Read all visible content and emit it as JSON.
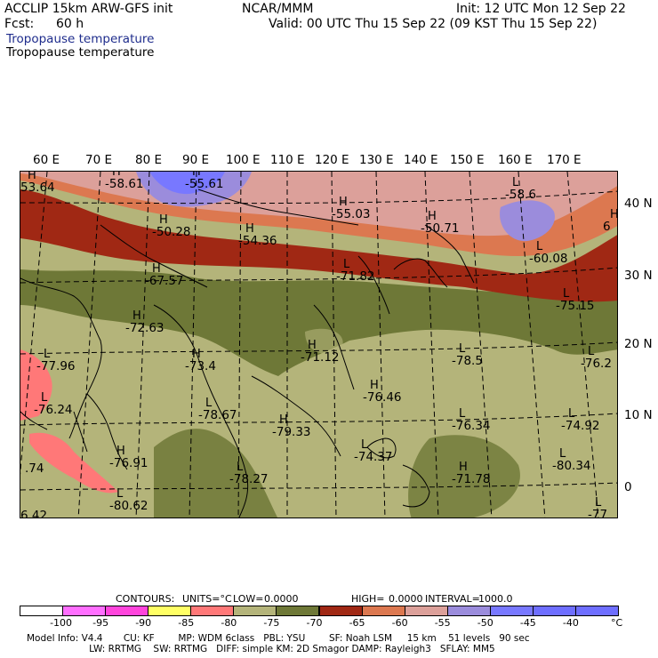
{
  "header": {
    "title": "ACCLIP 15km ARW-GFS init",
    "org": "NCAR/MMM",
    "init": "Init: 12 UTC Mon 12 Sep 22",
    "fcst_label": "Fcst:",
    "fcst_value": "60 h",
    "valid": "Valid: 00 UTC Thu 15 Sep 22 (09 KST Thu 15 Sep 22)",
    "field_title_1": "Tropopause temperature",
    "field_title_2": "Tropopause temperature"
  },
  "map": {
    "lon_labels": [
      "60 E",
      "70 E",
      "80 E",
      "90 E",
      "100 E",
      "110 E",
      "120 E",
      "130 E",
      "140 E",
      "150 E",
      "160 E",
      "170 E"
    ],
    "lat_labels": [
      "40 N",
      "30 N",
      "20 N",
      "10 N",
      "0"
    ],
    "extrema": [
      {
        "kind": "H",
        "value": "-58.61"
      },
      {
        "kind": "H",
        "value": "-55.61"
      },
      {
        "kind": "L",
        "value": "-58.6"
      },
      {
        "kind": "H",
        "value": "-55.03"
      },
      {
        "kind": "H",
        "value": "-50.28"
      },
      {
        "kind": "H",
        "value": "-54.36"
      },
      {
        "kind": "H",
        "value": "-50.71"
      },
      {
        "kind": "L",
        "value": "-60.08"
      },
      {
        "kind": "H",
        "value": "-67.57"
      },
      {
        "kind": "L",
        "value": "-71.82"
      },
      {
        "kind": "L",
        "value": "-75.15"
      },
      {
        "kind": "H",
        "value": "-72.63"
      },
      {
        "kind": "L",
        "value": "-77.96"
      },
      {
        "kind": "H",
        "value": "-73.4"
      },
      {
        "kind": "H",
        "value": "-71.12"
      },
      {
        "kind": "L",
        "value": "-78.5"
      },
      {
        "kind": "L",
        "value": "-76.2"
      },
      {
        "kind": "H",
        "value": "-76.46"
      },
      {
        "kind": "L",
        "value": "-76.24"
      },
      {
        "kind": "L",
        "value": "-78.67"
      },
      {
        "kind": "H",
        "value": "-79.33"
      },
      {
        "kind": "L",
        "value": "-76.34"
      },
      {
        "kind": "L",
        "value": "-74.92"
      },
      {
        "kind": "H",
        "value": "-76.91"
      },
      {
        "kind": "L",
        "value": "-78.27"
      },
      {
        "kind": "L",
        "value": "-74.37"
      },
      {
        "kind": "H",
        "value": "-71.78"
      },
      {
        "kind": "L",
        "value": "-80.34"
      },
      {
        "kind": "L",
        "value": "-80.62"
      },
      {
        "kind": "L",
        "value": "-77"
      },
      {
        "kind": "H",
        "value": "53.64"
      },
      {
        "kind": "",
        "value": ".74"
      },
      {
        "kind": "",
        "value": "6.42"
      },
      {
        "kind": "H",
        "value": "6"
      }
    ]
  },
  "legend": {
    "contours_label": "CONTOURS:",
    "units_label": "UNITS=°C",
    "low_label": "LOW=",
    "low_value": "0.0000",
    "high_label": "HIGH=",
    "high_value": "0.0000",
    "interval_label": "INTERVAL=",
    "interval_value": "1000.0",
    "unit_symbol": "°C",
    "ticks": [
      "-100",
      "-95",
      "-90",
      "-85",
      "-80",
      "-75",
      "-70",
      "-65",
      "-60",
      "-55",
      "-50",
      "-45",
      "-40"
    ],
    "colors": [
      "#ffffff",
      "#ff6eff",
      "#ff44dc",
      "#ffff64",
      "#ff7878",
      "#b4b47a",
      "#6e7837",
      "#a02814",
      "#dc7850",
      "#dca09a",
      "#9b8cdc",
      "#7878ff",
      "#6e6eff",
      "#6e6eff"
    ]
  },
  "model_info": {
    "line1": "Model Info: V4.4       CU: KF        MP: WDM 6class   PBL: YSU        SF: Noah LSM     15 km    51 levels   90 sec",
    "line2": "                     LW: RRTMG    SW: RRTMG   DIFF: simple KM: 2D Smagor DAMP: Rayleigh3   SFLAY: MM5"
  }
}
